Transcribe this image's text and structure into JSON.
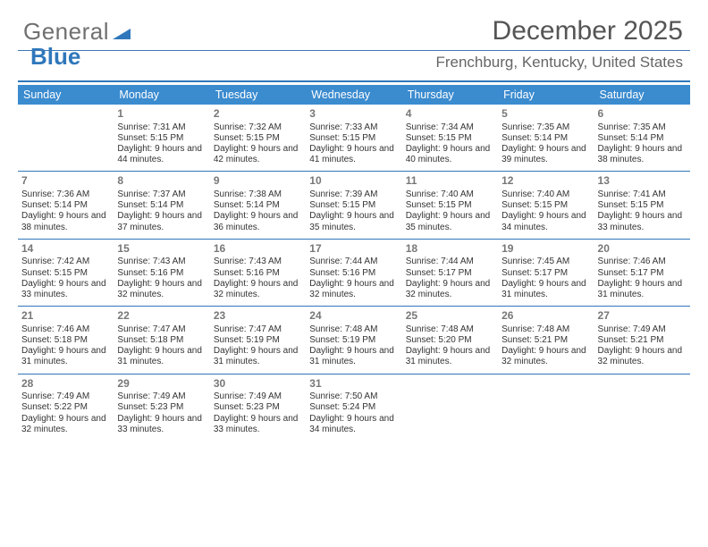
{
  "brand": {
    "part1": "General",
    "part2": "Blue",
    "tri_color": "#2f77bb"
  },
  "header": {
    "title": "December 2025",
    "location": "Frenchburg, Kentucky, United States"
  },
  "colors": {
    "header_bg": "#3b8bcf",
    "header_text": "#ffffff",
    "rule": "#2f77bb",
    "daynum": "#777777",
    "body_text": "#333333",
    "title_text": "#555555",
    "subtitle_text": "#666666",
    "page_bg": "#ffffff"
  },
  "day_names": [
    "Sunday",
    "Monday",
    "Tuesday",
    "Wednesday",
    "Thursday",
    "Friday",
    "Saturday"
  ],
  "calendar": {
    "start_dow": 1,
    "days": [
      {
        "n": 1,
        "sunrise": "7:31 AM",
        "sunset": "5:15 PM",
        "daylight": "9 hours and 44 minutes."
      },
      {
        "n": 2,
        "sunrise": "7:32 AM",
        "sunset": "5:15 PM",
        "daylight": "9 hours and 42 minutes."
      },
      {
        "n": 3,
        "sunrise": "7:33 AM",
        "sunset": "5:15 PM",
        "daylight": "9 hours and 41 minutes."
      },
      {
        "n": 4,
        "sunrise": "7:34 AM",
        "sunset": "5:15 PM",
        "daylight": "9 hours and 40 minutes."
      },
      {
        "n": 5,
        "sunrise": "7:35 AM",
        "sunset": "5:14 PM",
        "daylight": "9 hours and 39 minutes."
      },
      {
        "n": 6,
        "sunrise": "7:35 AM",
        "sunset": "5:14 PM",
        "daylight": "9 hours and 38 minutes."
      },
      {
        "n": 7,
        "sunrise": "7:36 AM",
        "sunset": "5:14 PM",
        "daylight": "9 hours and 38 minutes."
      },
      {
        "n": 8,
        "sunrise": "7:37 AM",
        "sunset": "5:14 PM",
        "daylight": "9 hours and 37 minutes."
      },
      {
        "n": 9,
        "sunrise": "7:38 AM",
        "sunset": "5:14 PM",
        "daylight": "9 hours and 36 minutes."
      },
      {
        "n": 10,
        "sunrise": "7:39 AM",
        "sunset": "5:15 PM",
        "daylight": "9 hours and 35 minutes."
      },
      {
        "n": 11,
        "sunrise": "7:40 AM",
        "sunset": "5:15 PM",
        "daylight": "9 hours and 35 minutes."
      },
      {
        "n": 12,
        "sunrise": "7:40 AM",
        "sunset": "5:15 PM",
        "daylight": "9 hours and 34 minutes."
      },
      {
        "n": 13,
        "sunrise": "7:41 AM",
        "sunset": "5:15 PM",
        "daylight": "9 hours and 33 minutes."
      },
      {
        "n": 14,
        "sunrise": "7:42 AM",
        "sunset": "5:15 PM",
        "daylight": "9 hours and 33 minutes."
      },
      {
        "n": 15,
        "sunrise": "7:43 AM",
        "sunset": "5:16 PM",
        "daylight": "9 hours and 32 minutes."
      },
      {
        "n": 16,
        "sunrise": "7:43 AM",
        "sunset": "5:16 PM",
        "daylight": "9 hours and 32 minutes."
      },
      {
        "n": 17,
        "sunrise": "7:44 AM",
        "sunset": "5:16 PM",
        "daylight": "9 hours and 32 minutes."
      },
      {
        "n": 18,
        "sunrise": "7:44 AM",
        "sunset": "5:17 PM",
        "daylight": "9 hours and 32 minutes."
      },
      {
        "n": 19,
        "sunrise": "7:45 AM",
        "sunset": "5:17 PM",
        "daylight": "9 hours and 31 minutes."
      },
      {
        "n": 20,
        "sunrise": "7:46 AM",
        "sunset": "5:17 PM",
        "daylight": "9 hours and 31 minutes."
      },
      {
        "n": 21,
        "sunrise": "7:46 AM",
        "sunset": "5:18 PM",
        "daylight": "9 hours and 31 minutes."
      },
      {
        "n": 22,
        "sunrise": "7:47 AM",
        "sunset": "5:18 PM",
        "daylight": "9 hours and 31 minutes."
      },
      {
        "n": 23,
        "sunrise": "7:47 AM",
        "sunset": "5:19 PM",
        "daylight": "9 hours and 31 minutes."
      },
      {
        "n": 24,
        "sunrise": "7:48 AM",
        "sunset": "5:19 PM",
        "daylight": "9 hours and 31 minutes."
      },
      {
        "n": 25,
        "sunrise": "7:48 AM",
        "sunset": "5:20 PM",
        "daylight": "9 hours and 31 minutes."
      },
      {
        "n": 26,
        "sunrise": "7:48 AM",
        "sunset": "5:21 PM",
        "daylight": "9 hours and 32 minutes."
      },
      {
        "n": 27,
        "sunrise": "7:49 AM",
        "sunset": "5:21 PM",
        "daylight": "9 hours and 32 minutes."
      },
      {
        "n": 28,
        "sunrise": "7:49 AM",
        "sunset": "5:22 PM",
        "daylight": "9 hours and 32 minutes."
      },
      {
        "n": 29,
        "sunrise": "7:49 AM",
        "sunset": "5:23 PM",
        "daylight": "9 hours and 33 minutes."
      },
      {
        "n": 30,
        "sunrise": "7:49 AM",
        "sunset": "5:23 PM",
        "daylight": "9 hours and 33 minutes."
      },
      {
        "n": 31,
        "sunrise": "7:50 AM",
        "sunset": "5:24 PM",
        "daylight": "9 hours and 34 minutes."
      }
    ]
  },
  "labels": {
    "sunrise": "Sunrise:",
    "sunset": "Sunset:",
    "daylight": "Daylight:"
  }
}
